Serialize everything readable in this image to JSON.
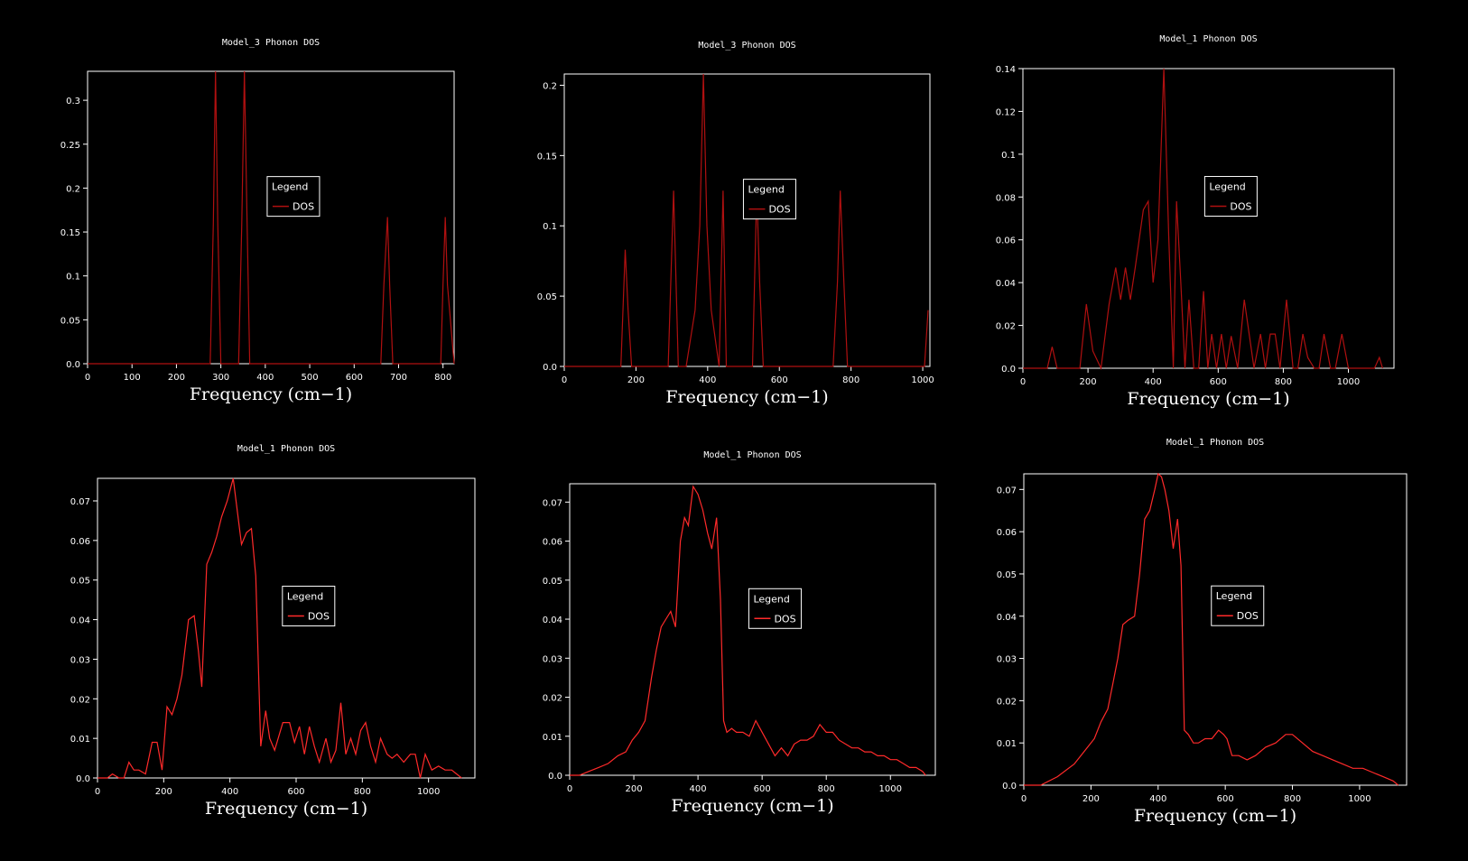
{
  "colors": {
    "background": "#000000",
    "axes": "#ffffff",
    "series": "#ff2a2a",
    "series_dark": "#b01010"
  },
  "chart_data": [
    {
      "type": "line",
      "title": "Model_3 Phonon DOS",
      "xlabel": "Frequency (cm−1)",
      "xlim": [
        0,
        825
      ],
      "ylim": [
        0,
        0.333
      ],
      "xticks": [
        0,
        100,
        200,
        300,
        400,
        500,
        600,
        700,
        800
      ],
      "yticks": [
        0.0,
        0.05,
        0.1,
        0.15,
        0.2,
        0.25,
        0.3
      ],
      "ytick_labels": [
        "0.0",
        "0.05",
        "0.1",
        "0.15",
        "0.2",
        "0.25",
        "0.3"
      ],
      "legend": {
        "title": "Legend",
        "entries": [
          "DOS"
        ],
        "placement": "center"
      },
      "series": [
        {
          "name": "DOS",
          "color": "#b01010",
          "x": [
            0,
            276,
            283,
            288,
            293,
            300,
            340,
            347,
            353,
            359,
            365,
            660,
            667,
            675,
            680,
            687,
            795,
            800,
            805,
            810,
            825
          ],
          "y": [
            0,
            0,
            0.16,
            0.333,
            0.16,
            0,
            0,
            0.16,
            0.333,
            0.16,
            0,
            0,
            0.09,
            0.167,
            0.09,
            0,
            0,
            0.09,
            0.167,
            0.09,
            0
          ]
        }
      ]
    },
    {
      "type": "line",
      "title": "Model_3 Phonon DOS",
      "xlabel": "Frequency (cm−1)",
      "xlim": [
        0,
        1020
      ],
      "ylim": [
        0,
        0.208
      ],
      "xticks": [
        0,
        200,
        400,
        600,
        800,
        1000
      ],
      "yticks": [
        0.0,
        0.05,
        0.1,
        0.15,
        0.2
      ],
      "ytick_labels": [
        "0.0",
        "0.05",
        "0.1",
        "0.15",
        "0.2"
      ],
      "legend": {
        "title": "Legend",
        "entries": [
          "DOS"
        ],
        "placement": "center"
      },
      "series": [
        {
          "name": "DOS",
          "color": "#b01010",
          "x": [
            0,
            158,
            170,
            178,
            188,
            290,
            305,
            318,
            340,
            365,
            378,
            388,
            398,
            410,
            432,
            443,
            452,
            463,
            525,
            537,
            545,
            555,
            750,
            762,
            770,
            780,
            790,
            1005,
            1015
          ],
          "y": [
            0,
            0,
            0.083,
            0.04,
            0,
            0,
            0.125,
            0,
            0,
            0.04,
            0.1,
            0.208,
            0.1,
            0.04,
            0,
            0.125,
            0,
            0,
            0,
            0.125,
            0.06,
            0,
            0,
            0.06,
            0.125,
            0.06,
            0,
            0,
            0.04
          ]
        }
      ]
    },
    {
      "type": "line",
      "title": "Model_1 Phonon DOS",
      "xlabel": "Frequency (cm−1)",
      "xlim": [
        0,
        1140
      ],
      "ylim": [
        0,
        0.14
      ],
      "xticks": [
        0,
        200,
        400,
        600,
        800,
        1000
      ],
      "yticks": [
        0.0,
        0.02,
        0.04,
        0.06,
        0.08,
        0.1,
        0.12,
        0.14
      ],
      "ytick_labels": [
        "0.0",
        "0.02",
        "0.04",
        "0.06",
        "0.08",
        "0.1",
        "0.12",
        "0.14"
      ],
      "legend": {
        "title": "Legend",
        "entries": [
          "DOS"
        ],
        "placement": "center"
      },
      "series": [
        {
          "name": "DOS",
          "color": "#b01010",
          "x": [
            0,
            75,
            90,
            105,
            175,
            195,
            215,
            240,
            265,
            285,
            300,
            315,
            330,
            345,
            370,
            385,
            400,
            415,
            433,
            448,
            462,
            472,
            485,
            498,
            510,
            525,
            540,
            555,
            568,
            580,
            595,
            610,
            625,
            640,
            660,
            680,
            695,
            710,
            730,
            745,
            760,
            775,
            790,
            810,
            830,
            845,
            860,
            875,
            895,
            910,
            925,
            945,
            960,
            980,
            1000,
            1015,
            1030,
            1080,
            1095,
            1105
          ],
          "y": [
            0,
            0,
            0.01,
            0,
            0,
            0.03,
            0.008,
            0,
            0.03,
            0.047,
            0.032,
            0.047,
            0.032,
            0.047,
            0.074,
            0.078,
            0.04,
            0.06,
            0.14,
            0.062,
            0.0,
            0.078,
            0.04,
            0.0,
            0.032,
            0.0,
            0.0,
            0.036,
            0.0,
            0.016,
            0.0,
            0.016,
            0.0,
            0.015,
            0.0,
            0.032,
            0.016,
            0.0,
            0.016,
            0.0,
            0.016,
            0.016,
            0.0,
            0.032,
            0.0,
            0.0,
            0.016,
            0.005,
            0.0,
            0.0,
            0.016,
            0.0,
            0.0,
            0.016,
            0.0,
            0.0,
            0.0,
            0.0,
            0.005,
            0.0
          ]
        }
      ]
    },
    {
      "type": "line",
      "title": "Model_1 Phonon DOS",
      "xlabel": "Frequency (cm−1)",
      "xlim": [
        0,
        1140
      ],
      "ylim": [
        0,
        0.0757
      ],
      "xticks": [
        0,
        200,
        400,
        600,
        800,
        1000
      ],
      "yticks": [
        0.0,
        0.01,
        0.02,
        0.03,
        0.04,
        0.05,
        0.06,
        0.07
      ],
      "ytick_labels": [
        "0.0",
        "0.01",
        "0.02",
        "0.03",
        "0.04",
        "0.05",
        "0.06",
        "0.07"
      ],
      "legend": {
        "title": "Legend",
        "entries": [
          "DOS"
        ],
        "placement": "center"
      },
      "series": [
        {
          "name": "DOS",
          "color": "#ff2a2a",
          "x": [
            0,
            30,
            45,
            65,
            80,
            95,
            110,
            125,
            145,
            165,
            180,
            195,
            210,
            225,
            240,
            255,
            275,
            292,
            305,
            315,
            330,
            345,
            360,
            375,
            392,
            410,
            420,
            435,
            450,
            465,
            478,
            493,
            508,
            520,
            535,
            560,
            580,
            595,
            610,
            625,
            640,
            655,
            670,
            690,
            705,
            720,
            735,
            750,
            765,
            780,
            795,
            810,
            825,
            840,
            855,
            875,
            890,
            905,
            925,
            945,
            960,
            975,
            990,
            1010,
            1030,
            1050,
            1070,
            1085,
            1100
          ],
          "y": [
            0,
            0,
            0.001,
            0,
            0,
            0.004,
            0.002,
            0.002,
            0.001,
            0.009,
            0.009,
            0.002,
            0.018,
            0.016,
            0.02,
            0.026,
            0.04,
            0.041,
            0.032,
            0.023,
            0.054,
            0.057,
            0.061,
            0.066,
            0.07,
            0.0757,
            0.069,
            0.059,
            0.062,
            0.063,
            0.051,
            0.008,
            0.017,
            0.01,
            0.007,
            0.014,
            0.014,
            0.009,
            0.013,
            0.006,
            0.013,
            0.008,
            0.004,
            0.01,
            0.004,
            0.007,
            0.019,
            0.006,
            0.01,
            0.006,
            0.012,
            0.014,
            0.008,
            0.004,
            0.01,
            0.006,
            0.005,
            0.006,
            0.004,
            0.006,
            0.006,
            0.0,
            0.006,
            0.002,
            0.003,
            0.002,
            0.002,
            0.001,
            0.0
          ]
        }
      ]
    },
    {
      "type": "line",
      "title": "Model_1 Phonon DOS",
      "xlabel": "Frequency (cm−1)",
      "xlim": [
        0,
        1140
      ],
      "ylim": [
        0,
        0.0747
      ],
      "xticks": [
        0,
        200,
        400,
        600,
        800,
        1000
      ],
      "yticks": [
        0.0,
        0.01,
        0.02,
        0.03,
        0.04,
        0.05,
        0.06,
        0.07
      ],
      "ytick_labels": [
        "0.0",
        "0.01",
        "0.02",
        "0.03",
        "0.04",
        "0.05",
        "0.06",
        "0.07"
      ],
      "legend": {
        "title": "Legend",
        "entries": [
          "DOS"
        ],
        "placement": "center"
      },
      "series": [
        {
          "name": "DOS",
          "color": "#ff2a2a",
          "x": [
            0,
            30,
            60,
            90,
            120,
            150,
            175,
            195,
            215,
            235,
            255,
            270,
            285,
            300,
            315,
            330,
            345,
            358,
            370,
            385,
            400,
            415,
            430,
            443,
            458,
            470,
            480,
            490,
            505,
            520,
            540,
            560,
            580,
            600,
            620,
            640,
            660,
            680,
            700,
            720,
            740,
            760,
            780,
            800,
            820,
            840,
            860,
            880,
            900,
            920,
            940,
            960,
            980,
            1000,
            1020,
            1040,
            1060,
            1080,
            1100,
            1110
          ],
          "y": [
            0,
            0.0,
            0.001,
            0.002,
            0.003,
            0.005,
            0.006,
            0.009,
            0.011,
            0.014,
            0.025,
            0.032,
            0.038,
            0.04,
            0.042,
            0.038,
            0.06,
            0.066,
            0.064,
            0.074,
            0.072,
            0.068,
            0.062,
            0.058,
            0.066,
            0.045,
            0.014,
            0.011,
            0.012,
            0.011,
            0.011,
            0.01,
            0.014,
            0.011,
            0.008,
            0.005,
            0.007,
            0.005,
            0.008,
            0.009,
            0.009,
            0.01,
            0.013,
            0.011,
            0.011,
            0.009,
            0.008,
            0.007,
            0.007,
            0.006,
            0.006,
            0.005,
            0.005,
            0.004,
            0.004,
            0.003,
            0.002,
            0.002,
            0.001,
            0.0
          ]
        }
      ]
    },
    {
      "type": "line",
      "title": "Model_1 Phonon DOS",
      "xlabel": "Frequency (cm−1)",
      "xlim": [
        0,
        1140
      ],
      "ylim": [
        0,
        0.0737
      ],
      "xticks": [
        0,
        200,
        400,
        600,
        800,
        1000
      ],
      "yticks": [
        0.0,
        0.01,
        0.02,
        0.03,
        0.04,
        0.05,
        0.06,
        0.07
      ],
      "ytick_labels": [
        "0.0",
        "0.01",
        "0.02",
        "0.03",
        "0.04",
        "0.05",
        "0.06",
        "0.07"
      ],
      "legend": {
        "title": "Legend",
        "entries": [
          "DOS"
        ],
        "placement": "center"
      },
      "series": [
        {
          "name": "DOS",
          "color": "#ff2a2a",
          "x": [
            0,
            50,
            100,
            150,
            180,
            210,
            230,
            250,
            265,
            280,
            295,
            310,
            330,
            345,
            360,
            375,
            390,
            400,
            410,
            420,
            432,
            445,
            458,
            468,
            478,
            490,
            505,
            520,
            540,
            560,
            580,
            595,
            605,
            620,
            640,
            665,
            690,
            720,
            750,
            780,
            800,
            830,
            860,
            890,
            920,
            950,
            980,
            1010,
            1040,
            1070,
            1100,
            1115
          ],
          "y": [
            0,
            0.0,
            0.002,
            0.005,
            0.008,
            0.011,
            0.015,
            0.018,
            0.024,
            0.03,
            0.038,
            0.039,
            0.04,
            0.05,
            0.063,
            0.065,
            0.07,
            0.0737,
            0.073,
            0.07,
            0.065,
            0.056,
            0.063,
            0.052,
            0.013,
            0.012,
            0.01,
            0.01,
            0.011,
            0.011,
            0.013,
            0.012,
            0.011,
            0.007,
            0.007,
            0.006,
            0.007,
            0.009,
            0.01,
            0.012,
            0.012,
            0.01,
            0.008,
            0.007,
            0.006,
            0.005,
            0.004,
            0.004,
            0.003,
            0.002,
            0.001,
            0.0
          ]
        }
      ]
    }
  ]
}
